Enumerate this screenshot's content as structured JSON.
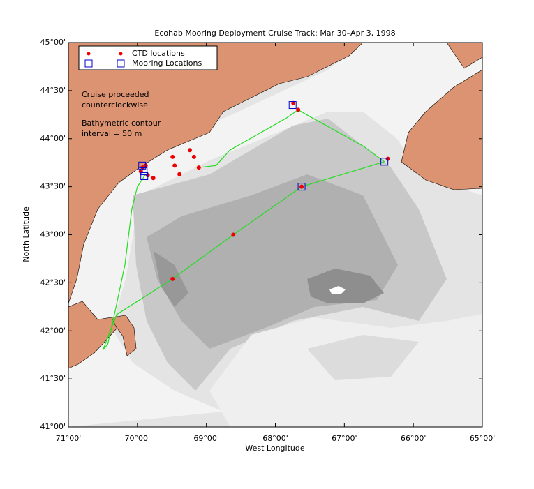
{
  "chart_data": {
    "type": "scatter",
    "title": "Ecohab Mooring Deployment Cruise Track: Mar 30–Apr 3, 1998",
    "x_label": "West Longitude",
    "y_label": "North Latitude",
    "xlim": [
      71,
      65
    ],
    "ylim": [
      41,
      45
    ],
    "xticks": [
      {
        "value": 71,
        "label": "71°00'"
      },
      {
        "value": 70,
        "label": "70°00'"
      },
      {
        "value": 69,
        "label": "69°00'"
      },
      {
        "value": 68,
        "label": "68°00'"
      },
      {
        "value": 67,
        "label": "67°00'"
      },
      {
        "value": 66,
        "label": "66°00'"
      },
      {
        "value": 65,
        "label": "65°00'"
      }
    ],
    "yticks": [
      {
        "value": 45,
        "label": "45°00'"
      },
      {
        "value": 44.5,
        "label": "44°30'"
      },
      {
        "value": 44,
        "label": "44°00'"
      },
      {
        "value": 43.5,
        "label": "43°30'"
      },
      {
        "value": 43,
        "label": "43°00'"
      },
      {
        "value": 42.5,
        "label": "42°30'"
      },
      {
        "value": 42,
        "label": "42°00'"
      },
      {
        "value": 41.5,
        "label": "41°30'"
      },
      {
        "value": 41,
        "label": "41°00'"
      }
    ],
    "annotations": [
      "Cruise proceeded",
      "counterclockwise",
      "Bathymetric contour",
      "interval = 50 m"
    ],
    "track": {
      "color": "#22dd22",
      "x": [
        69.88,
        70.0,
        70.08,
        70.18,
        70.33,
        70.43,
        70.5,
        70.3,
        69.49,
        68.61,
        67.62,
        66.42,
        66.72,
        67.55,
        67.67,
        67.85,
        68.66,
        68.86,
        69.11
      ],
      "y": [
        43.63,
        43.5,
        43.27,
        42.69,
        42.18,
        41.86,
        41.8,
        42.17,
        42.54,
        43.0,
        43.5,
        43.76,
        43.92,
        44.25,
        44.3,
        44.21,
        43.88,
        43.72,
        43.7
      ]
    },
    "series": [
      {
        "name": "CTD locations",
        "color": "#ee0000",
        "marker": "dot",
        "x": [
          69.92,
          69.95,
          69.88,
          69.85,
          69.77,
          69.49,
          69.46,
          69.39,
          69.24,
          69.18,
          69.11,
          67.74,
          67.67,
          67.62,
          66.37,
          68.61,
          69.49
        ],
        "y": [
          43.7,
          43.66,
          43.72,
          43.62,
          43.59,
          43.81,
          43.72,
          43.63,
          43.88,
          43.81,
          43.7,
          44.37,
          44.3,
          43.5,
          43.79,
          43.0,
          42.54
        ]
      },
      {
        "name": "Mooring Locations",
        "color": "#0000cc",
        "marker": "square",
        "x": [
          69.93,
          69.91,
          69.9,
          67.75,
          67.62,
          66.42
        ],
        "y": [
          43.72,
          43.66,
          43.61,
          44.35,
          43.5,
          43.76
        ]
      }
    ]
  }
}
